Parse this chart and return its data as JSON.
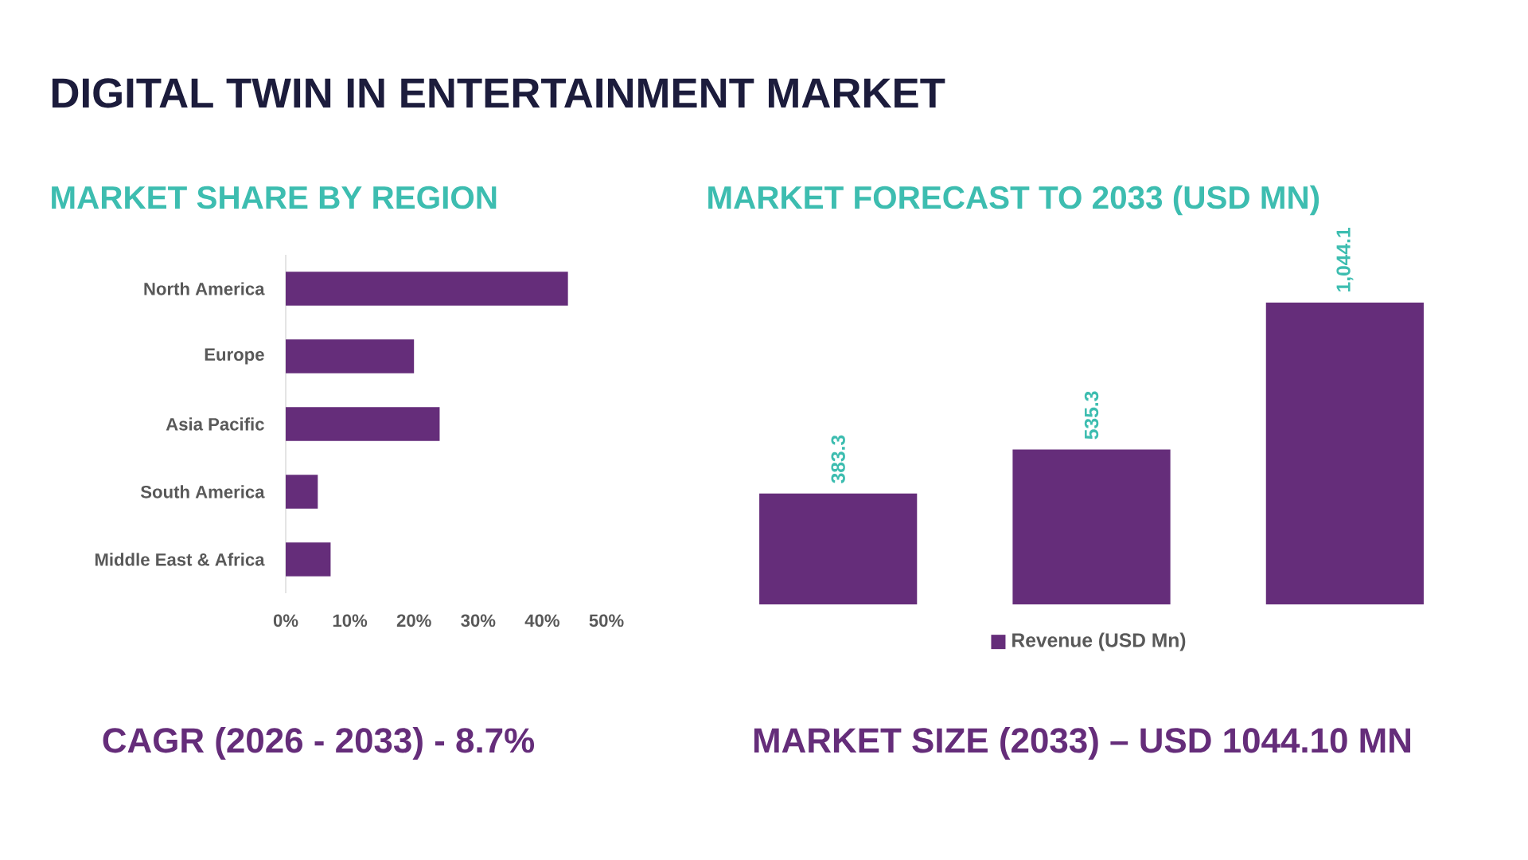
{
  "chart_data": [
    {
      "type": "bar",
      "orientation": "horizontal",
      "title": "DIGITAL TWIN IN ENTERTAINMENT MARKET",
      "subtitle": "MARKET SHARE BY REGION",
      "categories": [
        "North America",
        "Europe",
        "Asia Pacific",
        "South America",
        "Middle East & Africa"
      ],
      "values": [
        44,
        20,
        24,
        5,
        7
      ],
      "color": "#652d7a",
      "xlim": [
        0,
        50
      ],
      "xticks": [
        {
          "value": 0,
          "label": "0%"
        },
        {
          "value": 10,
          "label": "10%"
        },
        {
          "value": 20,
          "label": "20%"
        },
        {
          "value": 30,
          "label": "30%"
        },
        {
          "value": 40,
          "label": "40%"
        },
        {
          "value": 50,
          "label": "50%"
        }
      ],
      "annotations": [
        "CAGR (2026 - 2033) - 8.7%"
      ]
    },
    {
      "type": "bar",
      "title": "MARKET FORECAST TO 2033 (USD MN)",
      "categories": [
        null,
        null,
        null
      ],
      "series": [
        {
          "name": "Revenue (USD Mn)",
          "color": "#652d7a",
          "values": [
            383.3,
            535.3,
            1044.1
          ],
          "value_labels": [
            "383.3",
            "535.3",
            "1,044.1"
          ]
        }
      ],
      "legend": "bottom",
      "annotations": [
        "MARKET SIZE (2033) – USD 1044.10 MN"
      ]
    }
  ]
}
